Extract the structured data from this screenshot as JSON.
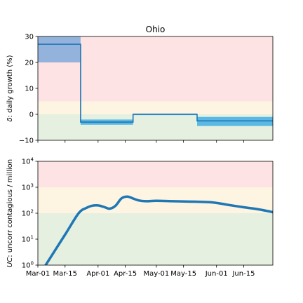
{
  "chart_data": [
    {
      "type": "line",
      "title": "Ohio",
      "ylabel_symbol": "δ",
      "ylabel_rest": ": daily growth (%)",
      "ylim": [
        -10,
        30
      ],
      "yticks": [
        -10,
        0,
        10,
        20,
        30
      ],
      "ytick_labels": [
        "−10",
        "0",
        "10",
        "20",
        "30"
      ],
      "grid": false,
      "background_bands": [
        {
          "from": -10,
          "to": 0,
          "color": "#e5f0e1"
        },
        {
          "from": 0,
          "to": 5,
          "color": "#fdf4e2"
        },
        {
          "from": 5,
          "to": 30,
          "color": "#fde3e3"
        }
      ],
      "series": [
        {
          "kind": "step",
          "color": "#1f77b4",
          "segments": [
            {
              "start": "2020-03-01",
              "end": "2020-03-23",
              "value": 27,
              "band": [
                20,
                30
              ],
              "band_color": "#94b3dc"
            },
            {
              "start": "2020-03-23",
              "end": "2020-04-19",
              "value": -3,
              "band": [
                -4,
                -2
              ],
              "band_color": "#5ab8e3"
            },
            {
              "start": "2020-04-19",
              "end": "2020-05-22",
              "value": 0,
              "band": [
                -0.3,
                0.3
              ],
              "band_color": "#5ab8e3"
            },
            {
              "start": "2020-05-22",
              "end": "2020-06-30",
              "value": -2.5,
              "band": [
                -4.5,
                -1
              ],
              "band_color": "#5ab8e3"
            }
          ]
        }
      ]
    },
    {
      "type": "line",
      "ylabel_symbol": "UC",
      "ylabel_rest": ": uncorr contagious / million",
      "yscale": "log",
      "ylim": [
        1,
        10000
      ],
      "xlim": [
        "2020-03-01",
        "2020-06-30"
      ],
      "yticks": [
        1,
        10,
        100,
        1000,
        10000
      ],
      "ytick_labels": [
        [
          "10",
          "0"
        ],
        [
          "10",
          "1"
        ],
        [
          "10",
          "2"
        ],
        [
          "10",
          "3"
        ],
        [
          "10",
          "4"
        ]
      ],
      "xticks": [
        "2020-03-01",
        "2020-03-15",
        "2020-04-01",
        "2020-04-15",
        "2020-05-01",
        "2020-05-15",
        "2020-06-01",
        "2020-06-15"
      ],
      "xtick_labels": [
        "Mar-01",
        "Mar-15",
        "Apr-01",
        "Apr-15",
        "May-01",
        "May-15",
        "Jun-01",
        "Jun-15"
      ],
      "grid": false,
      "background_bands": [
        {
          "from": 1,
          "to": 100,
          "color": "#e5f0e1"
        },
        {
          "from": 100,
          "to": 1000,
          "color": "#fdf4e2"
        },
        {
          "from": 1000,
          "to": 10000,
          "color": "#fde3e3"
        }
      ],
      "series": [
        {
          "color": "#1f77b4",
          "x": [
            "2020-03-05",
            "2020-03-15",
            "2020-03-22",
            "2020-03-26",
            "2020-03-29",
            "2020-04-01",
            "2020-04-04",
            "2020-04-07",
            "2020-04-10",
            "2020-04-13",
            "2020-04-16",
            "2020-04-19",
            "2020-04-22",
            "2020-04-26",
            "2020-05-01",
            "2020-05-10",
            "2020-05-20",
            "2020-05-30",
            "2020-06-07",
            "2020-06-15",
            "2020-06-23",
            "2020-06-30"
          ],
          "y": [
            1,
            15,
            100,
            160,
            195,
            200,
            175,
            150,
            195,
            370,
            440,
            370,
            310,
            290,
            300,
            290,
            280,
            260,
            210,
            170,
            140,
            110
          ]
        }
      ]
    }
  ]
}
